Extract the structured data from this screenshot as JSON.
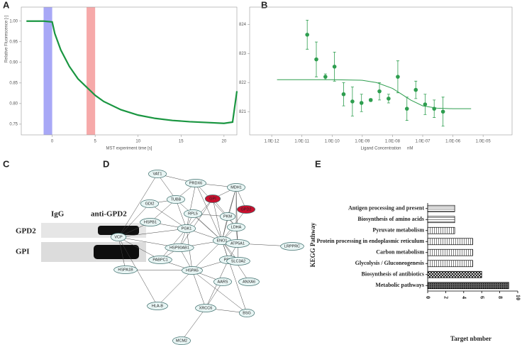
{
  "panels": [
    "A",
    "B",
    "C",
    "D",
    "E"
  ],
  "blot": {
    "columns": [
      "IgG",
      "anti-GPD2"
    ],
    "rows": [
      "GPD2",
      "GPI"
    ]
  },
  "network": {
    "nodes": [
      {
        "label": "VAT1"
      },
      {
        "label": "PRDX6"
      },
      {
        "label": "MDH1"
      },
      {
        "label": "GDI2"
      },
      {
        "label": "TUBB"
      },
      {
        "label": "GPI",
        "highlight": true
      },
      {
        "label": "RPL5"
      },
      {
        "label": "PKM"
      },
      {
        "label": "GPD2",
        "highlight": true
      },
      {
        "label": "HSPB1"
      },
      {
        "label": "PGK1"
      },
      {
        "label": "LDHA"
      },
      {
        "label": "VCP"
      },
      {
        "label": "ENO1"
      },
      {
        "label": "ATP5A1"
      },
      {
        "label": "HSP90AB1"
      },
      {
        "label": "LRPPRC"
      },
      {
        "label": "PABPC1"
      },
      {
        "label": "PPIA"
      },
      {
        "label": "SLC3A2"
      },
      {
        "label": "HSPA1B"
      },
      {
        "label": "HSPA5"
      },
      {
        "label": "AARS"
      },
      {
        "label": "ANXA6"
      },
      {
        "label": "HLA-B"
      },
      {
        "label": "XRCC6"
      },
      {
        "label": "BSG"
      },
      {
        "label": "MCM2"
      }
    ]
  },
  "chart_data": [
    {
      "type": "line",
      "x": [
        -3,
        -1,
        0,
        0.3,
        1,
        2,
        3,
        4,
        5,
        6,
        8,
        10,
        12,
        14,
        16,
        18,
        20,
        21,
        21.5
      ],
      "series": [
        {
          "color": "#1a9641",
          "values": [
            1.0,
            1.0,
            0.998,
            0.97,
            0.93,
            0.89,
            0.86,
            0.84,
            0.82,
            0.805,
            0.785,
            0.772,
            0.764,
            0.759,
            0.756,
            0.754,
            0.752,
            0.755,
            0.83
          ]
        }
      ],
      "highlights": [
        {
          "xlim": [
            -1,
            0
          ],
          "color": "#9f9ff5"
        },
        {
          "xlim": [
            4,
            5
          ],
          "color": "#f5a0a0"
        }
      ],
      "xlim": [
        -3.6,
        21.5
      ],
      "ylim": [
        0.724,
        1.034
      ],
      "xticks": [
        0,
        5,
        10,
        15,
        20
      ],
      "yticks": [
        0.75,
        {
          "value": 0.8,
          "label": "0.80"
        },
        0.85,
        {
          "value": 0.9,
          "label": "0.90"
        },
        0.95,
        {
          "value": 1.0,
          "label": "1.00"
        }
      ],
      "x_label": "MST experiment time [s]",
      "y_label": "Relative Fluorescence [-]"
    },
    {
      "type": "scatter",
      "xscale": "log",
      "color": "#2e9e4f",
      "x": [
        1.5e-11,
        3e-11,
        6e-11,
        1.2e-10,
        2.4e-10,
        4.7e-10,
        9.4e-10,
        1.9e-09,
        3.7e-09,
        7.4e-09,
        1.5e-08,
        3e-08,
        5.9e-08,
        1.2e-07,
        2.4e-07,
        4.7e-07
      ],
      "values": [
        823.65,
        822.8,
        822.2,
        822.55,
        821.6,
        821.35,
        821.3,
        821.4,
        821.7,
        821.45,
        822.2,
        821.1,
        821.75,
        821.25,
        821.1,
        821.0
      ],
      "errors": [
        0.5,
        0.6,
        0.1,
        0.5,
        0.4,
        0.5,
        0.3,
        0.05,
        0.3,
        0.15,
        0.55,
        0.4,
        0.3,
        0.35,
        0.3,
        0.5
      ],
      "fit": {
        "x": [
          1.5e-12,
          1e-10,
          1e-09,
          3e-09,
          1e-08,
          2e-08,
          4e-08,
          1e-07,
          3e-07,
          1e-06,
          4e-06
        ],
        "values": [
          822.1,
          822.1,
          822.08,
          822.0,
          821.8,
          821.6,
          821.4,
          821.2,
          821.12,
          821.1,
          821.1
        ]
      },
      "xlim": [
        1.86e-13,
        9.1e-05
      ],
      "ylim": [
        820.2,
        824.6
      ],
      "xticks": [
        {
          "value": 1e-12,
          "label": "1.0E-12"
        },
        {
          "value": 1e-11,
          "label": "1.0E-11"
        },
        {
          "value": 1e-10,
          "label": "1.0E-10"
        },
        {
          "value": 1e-09,
          "label": "1.0E-09"
        },
        {
          "value": 1e-08,
          "label": "1.0E-08"
        },
        {
          "value": 1e-07,
          "label": "1.0E-07"
        },
        {
          "value": 1e-06,
          "label": "1.0E-06"
        },
        {
          "value": 1e-05,
          "label": "1.0E-05"
        }
      ],
      "yticks": [
        821,
        822,
        823,
        824
      ],
      "x_label": "Ligand Concentration",
      "x_unit": "nM"
    },
    {
      "type": "barh",
      "categories": [
        "Antigen processing and present",
        "Biosynthesis of amino acids",
        "Pyruvate metabolism",
        "Protein processing in endoplasmic reticulum",
        "Carbon metabolism",
        "Glycolysis / Gluconeogenesis",
        "Biosynthesis of antibiotics",
        "Metabolic pathways"
      ],
      "values": [
        3,
        3,
        3,
        5,
        5,
        5,
        6,
        9
      ],
      "xlim": [
        0,
        10
      ],
      "xticks": [
        0,
        2,
        4,
        6,
        8,
        10
      ],
      "x_label": "Target nbmber",
      "y_label": "KEGG Pathway"
    }
  ]
}
